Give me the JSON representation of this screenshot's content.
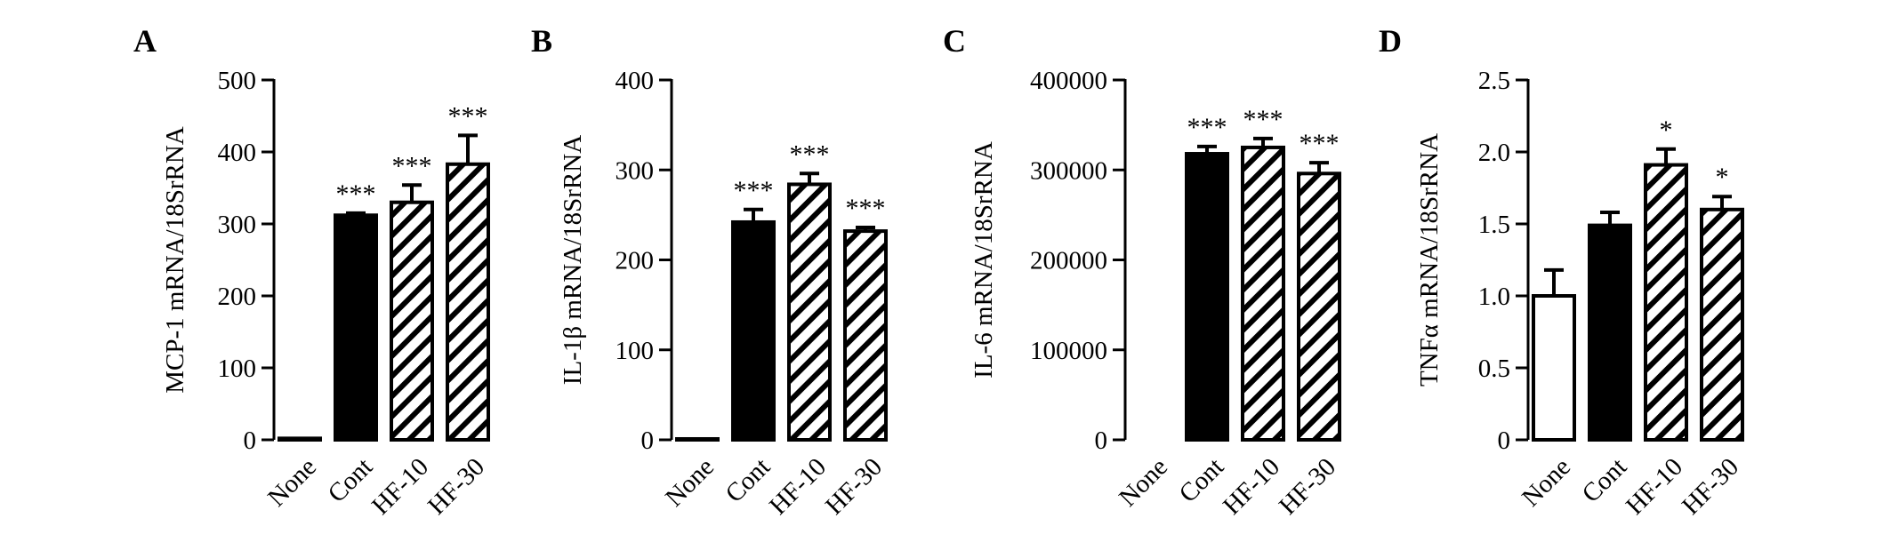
{
  "chart_data": [
    {
      "type": "bar",
      "panel": "A",
      "categories": [
        "None",
        "Cont",
        "HF-10",
        "HF-30"
      ],
      "values": [
        2,
        312,
        330,
        383
      ],
      "errors": [
        0,
        3,
        24,
        40
      ],
      "significance": [
        "",
        "***",
        "***",
        "***"
      ],
      "fills": [
        "white",
        "black",
        "hatch",
        "hatch"
      ],
      "ylabel": "MCP-1 mRNA/18SrRNA",
      "ylim": [
        0,
        500
      ],
      "yticks": [
        0,
        100,
        200,
        300,
        400,
        500
      ],
      "ytick_labels": [
        "0",
        "100",
        "200",
        "300",
        "400",
        "500"
      ]
    },
    {
      "type": "bar",
      "panel": "B",
      "categories": [
        "None",
        "Cont",
        "HF-10",
        "HF-30"
      ],
      "values": [
        1,
        242,
        284,
        232
      ],
      "errors": [
        0,
        14,
        12,
        4
      ],
      "significance": [
        "",
        "***",
        "***",
        "***"
      ],
      "fills": [
        "white",
        "black",
        "hatch",
        "hatch"
      ],
      "ylabel": "IL-1β mRNA/18SrRNA",
      "ylim": [
        0,
        400
      ],
      "yticks": [
        0,
        100,
        200,
        300,
        400
      ],
      "ytick_labels": [
        "0",
        "100",
        "200",
        "300",
        "400"
      ]
    },
    {
      "type": "bar",
      "panel": "C",
      "categories": [
        "None",
        "Cont",
        "HF-10",
        "HF-30"
      ],
      "values": [
        0,
        318000,
        325000,
        296000
      ],
      "errors": [
        0,
        8000,
        10000,
        12000
      ],
      "significance": [
        "",
        "***",
        "***",
        "***"
      ],
      "fills": [
        "white",
        "black",
        "hatch",
        "hatch"
      ],
      "ylabel": "IL-6 mRNA/18SrRNA",
      "ylim": [
        0,
        400000
      ],
      "yticks": [
        0,
        100000,
        200000,
        300000,
        400000
      ],
      "ytick_labels": [
        "0",
        "100000",
        "200000",
        "300000",
        "400000"
      ]
    },
    {
      "type": "bar",
      "panel": "D",
      "categories": [
        "None",
        "Cont",
        "HF-10",
        "HF-30"
      ],
      "values": [
        1.0,
        1.49,
        1.91,
        1.6
      ],
      "errors": [
        0.18,
        0.09,
        0.11,
        0.09
      ],
      "significance": [
        "",
        "",
        "*",
        "*"
      ],
      "fills": [
        "white",
        "black",
        "hatch",
        "hatch"
      ],
      "ylabel": "TNFα mRNA/18SrRNA",
      "ylim": [
        0,
        2.5
      ],
      "yticks": [
        0,
        0.5,
        1.0,
        1.5,
        2.0,
        2.5
      ],
      "ytick_labels": [
        "0",
        "0.5",
        "1.0",
        "1.5",
        "2.0",
        "2.5"
      ]
    }
  ]
}
